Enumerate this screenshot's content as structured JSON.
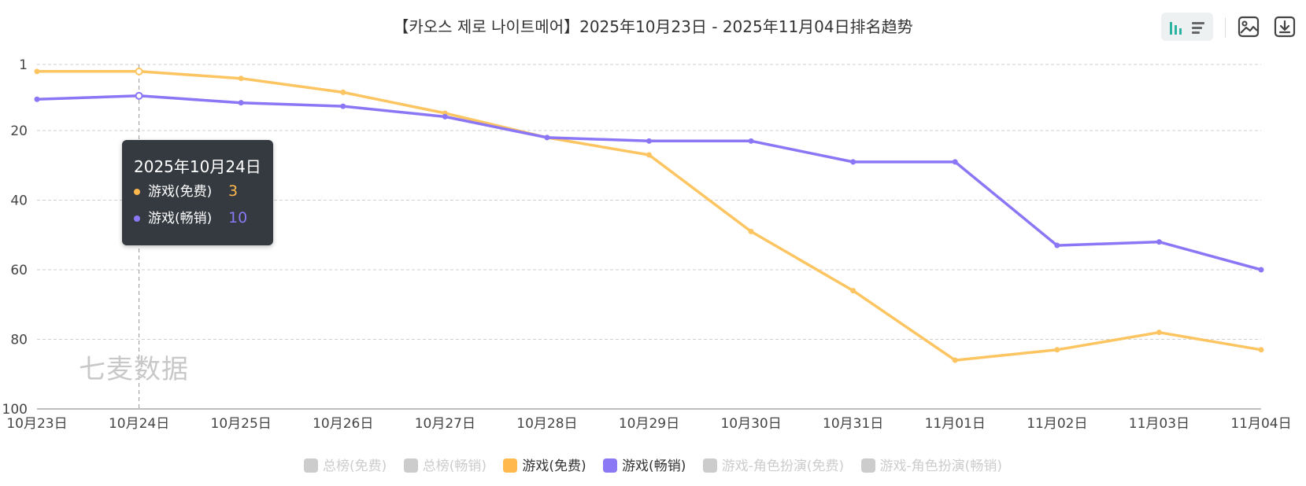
{
  "title": "【카오스 제로 나이트메어】2025年10月23日 - 2025年11月04日排名趋势",
  "watermark": "七麦数据",
  "tooltip": {
    "date": "2025年10月24日",
    "rows": [
      {
        "label": "游戏(免费)",
        "value": "3",
        "color": "#ffb84d"
      },
      {
        "label": "游戏(畅销)",
        "value": "10",
        "color": "#8a78f5"
      }
    ]
  },
  "legend": [
    {
      "label": "总榜(免费)",
      "active": false,
      "color": "#cccccc"
    },
    {
      "label": "总榜(畅销)",
      "active": false,
      "color": "#cccccc"
    },
    {
      "label": "游戏(免费)",
      "active": true,
      "color": "#ffb84d"
    },
    {
      "label": "游戏(畅销)",
      "active": true,
      "color": "#8a78f5"
    },
    {
      "label": "游戏-角色扮演(免费)",
      "active": false,
      "color": "#cccccc"
    },
    {
      "label": "游戏-角色扮演(畅销)",
      "active": false,
      "color": "#cccccc"
    }
  ],
  "toolbar": {
    "icons": [
      "bar-view-icon",
      "list-view-icon",
      "image-save-icon",
      "download-icon"
    ]
  },
  "chart_data": {
    "type": "line",
    "categories": [
      "10月23日",
      "10月24日",
      "10月25日",
      "10月26日",
      "10月27日",
      "10月28日",
      "10月29日",
      "10月30日",
      "10月31日",
      "11月01日",
      "11月02日",
      "11月03日",
      "11月04日"
    ],
    "yticks": [
      "1",
      "20",
      "40",
      "60",
      "80",
      "100"
    ],
    "ylim": [
      1,
      100
    ],
    "yinverted": true,
    "grid": true,
    "legend_position": "bottom",
    "highlighted_category": "10月24日",
    "series": [
      {
        "name": "游戏(免费)",
        "color": "#fcc562",
        "values": [
          3,
          3,
          5,
          9,
          15,
          22,
          27,
          49,
          66,
          86,
          83,
          78,
          83
        ]
      },
      {
        "name": "游戏(畅销)",
        "color": "#8b77f6",
        "values": [
          11,
          10,
          12,
          13,
          16,
          22,
          23,
          23,
          29,
          29,
          53,
          52,
          60
        ]
      }
    ]
  }
}
